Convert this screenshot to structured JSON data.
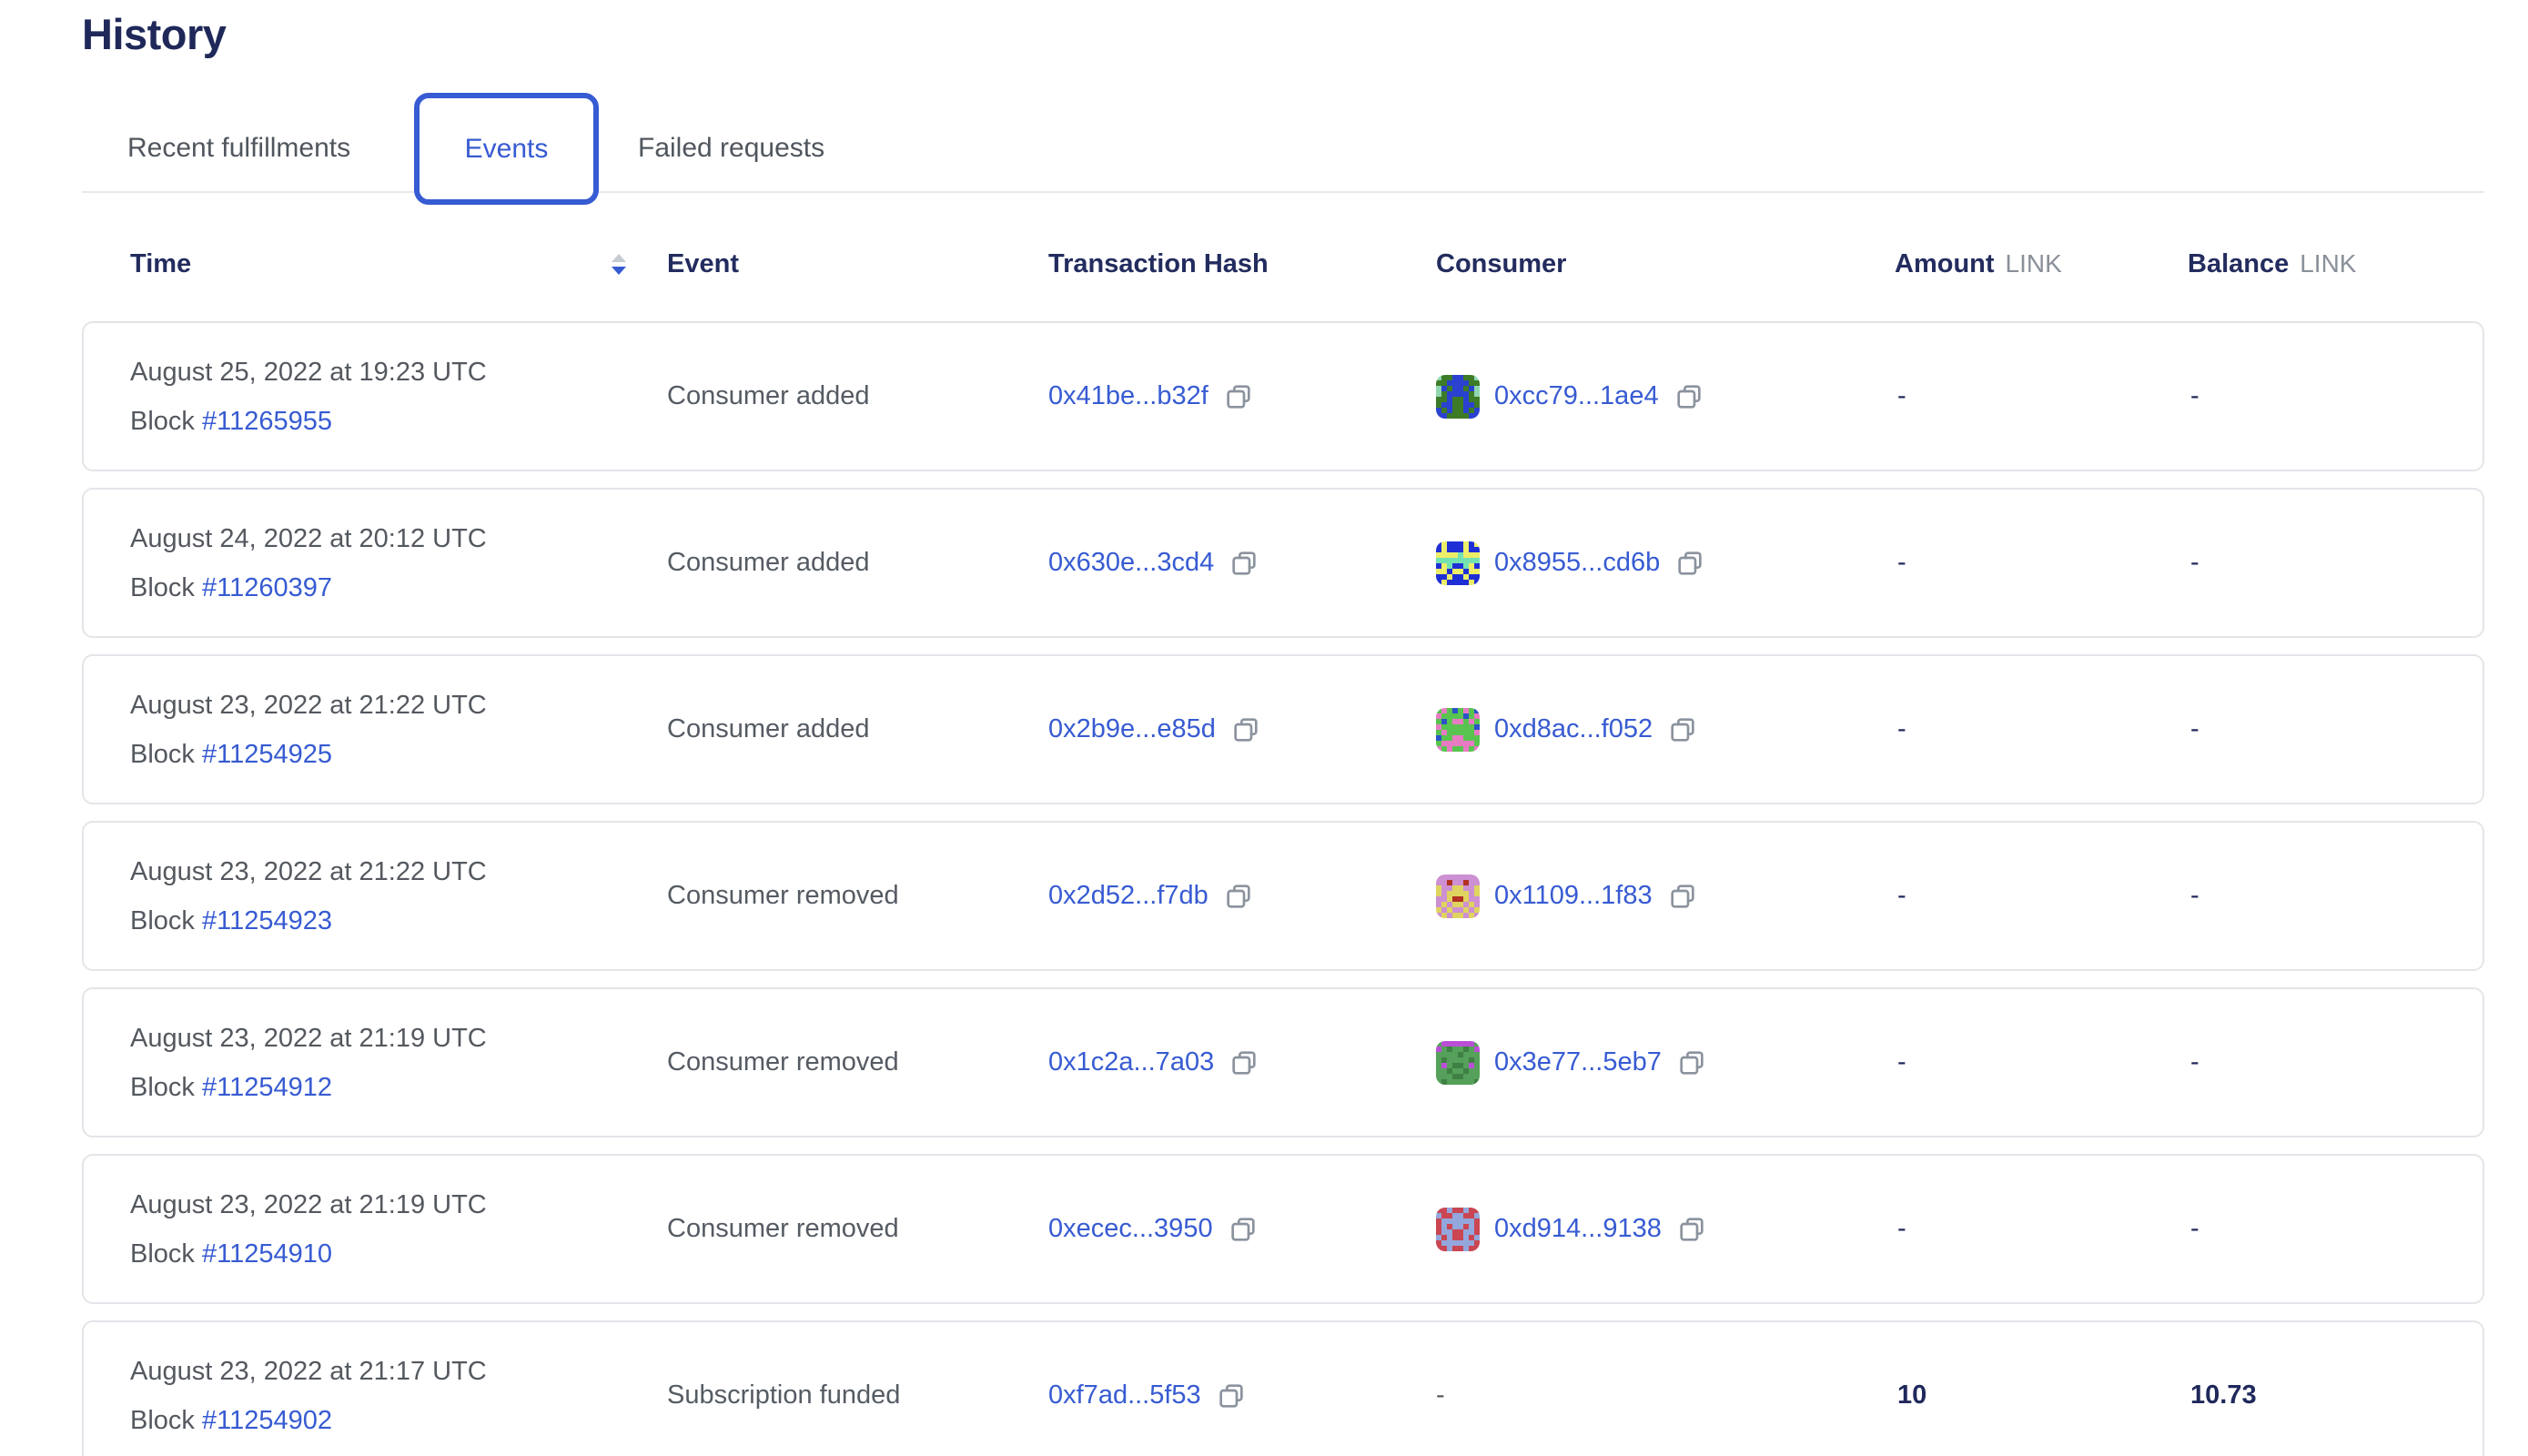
{
  "title": "History",
  "tabs": [
    {
      "label": "Recent fulfillments",
      "active": false
    },
    {
      "label": "Events",
      "active": true
    },
    {
      "label": "Failed requests",
      "active": false
    }
  ],
  "colors": {
    "accent": "#375BD2",
    "link": "#375BD2",
    "heading": "#1F2859",
    "body_gray": "#555B63",
    "unit_gray": "#8A9099",
    "card_border": "#E3E5E9"
  },
  "icons": {
    "sort": "sort-descending-icon",
    "copy": "copy-icon",
    "consumer_avatar": "pixel-identicon"
  },
  "table": {
    "columns": {
      "time": "Time",
      "event": "Event",
      "tx_hash": "Transaction Hash",
      "consumer": "Consumer",
      "amount": "Amount",
      "balance": "Balance",
      "unit": "LINK"
    },
    "sort": {
      "column": "Time",
      "direction": "descending"
    },
    "rows": [
      {
        "date": "August 25, 2022 at 19:23 UTC",
        "block_label": "Block",
        "block": "#11265955",
        "event": "Consumer added",
        "tx_hash": "0x41be...b32f",
        "consumer": "0xcc79...1ae4",
        "amount": "-",
        "balance": "-",
        "avatar": {
          "palette": {
            "g": "#3E7B27",
            "b": "#2B41D0",
            "m": "#90D7AF"
          },
          "pattern": [
            "mggbbggm",
            "ggbbbbgg",
            "mbgbbgbm",
            "mgbbbbgm",
            "ggbggbgg",
            "gbbggbbg",
            "bgbggbgb",
            "bbggggbb"
          ]
        }
      },
      {
        "date": "August 24, 2022 at 20:12 UTC",
        "block_label": "Block",
        "block": "#11260397",
        "event": "Consumer added",
        "tx_hash": "0x630e...3cd4",
        "consumer": "0x8955...cd6b",
        "amount": "-",
        "balance": "-",
        "avatar": {
          "palette": {
            "b": "#1F2FD6",
            "y": "#EDEE68",
            "t": "#74E2B0"
          },
          "pattern": [
            "bybbbyby",
            "bybbbybb",
            "yyyytyyy",
            "tttttttt",
            "bytbbtyb",
            "yybyybyy",
            "bbybbybb",
            "bybbbbyb"
          ]
        }
      },
      {
        "date": "August 23, 2022 at 21:22 UTC",
        "block_label": "Block",
        "block": "#11254925",
        "event": "Consumer added",
        "tx_hash": "0x2b9e...e85d",
        "consumer": "0xd8ac...f052",
        "amount": "-",
        "balance": "-",
        "avatar": {
          "palette": {
            "g": "#58C44F",
            "p": "#E77BC3",
            "b": "#2B52C8"
          },
          "pattern": [
            "gpgbgpgb",
            "pggggbgp",
            "gbgppgpg",
            "pggggggb",
            "gpgggggp",
            "bggppggg",
            "gppppppg",
            "pgpggpgp"
          ]
        }
      },
      {
        "date": "August 23, 2022 at 21:22 UTC",
        "block_label": "Block",
        "block": "#11254923",
        "event": "Consumer removed",
        "tx_hash": "0x2d52...f7db",
        "consumer": "0x1109...1f83",
        "amount": "-",
        "balance": "-",
        "avatar": {
          "palette": {
            "o": "#CD90D2",
            "y": "#DFD45F",
            "r": "#B23121"
          },
          "pattern": [
            "oooooooo",
            "oorooroo",
            "yooyyooy",
            "yoyyyyoy",
            "ooyrryoo",
            "oyoyyoyo",
            "yoyooyoy",
            "oyoyyoyo"
          ]
        }
      },
      {
        "date": "August 23, 2022 at 21:19 UTC",
        "block_label": "Block",
        "block": "#11254912",
        "event": "Consumer removed",
        "tx_hash": "0x1c2a...7a03",
        "consumer": "0x3e77...5eb7",
        "amount": "-",
        "balance": "-",
        "avatar": {
          "palette": {
            "g": "#55A05A",
            "d": "#3F8044",
            "p": "#BA4FD6"
          },
          "pattern": [
            "gppppppg",
            "pgdggdgp",
            "ggggdggg",
            "gdggggdg",
            "gpgddgpg",
            "ggdggdgg",
            "gggddggg",
            "gdgggggd"
          ]
        }
      },
      {
        "date": "August 23, 2022 at 21:19 UTC",
        "block_label": "Block",
        "block": "#11254910",
        "event": "Consumer removed",
        "tx_hash": "0xecec...3950",
        "consumer": "0xd914...9138",
        "amount": "-",
        "balance": "-",
        "avatar": {
          "palette": {
            "r": "#C94652",
            "l": "#93A7DC"
          },
          "pattern": [
            "rrlrrlrr",
            "lrrllrrl",
            "rllllllr",
            "rlrllrlr",
            "rllrrllr",
            "lrlrrlrl",
            "rllllllr",
            "rrlrrlrr"
          ]
        }
      },
      {
        "date": "August 23, 2022 at 21:17 UTC",
        "block_label": "Block",
        "block": "#11254902",
        "event": "Subscription funded",
        "tx_hash": "0xf7ad...5f53",
        "consumer": "-",
        "amount": "10",
        "balance": "10.73",
        "avatar": null
      }
    ]
  }
}
